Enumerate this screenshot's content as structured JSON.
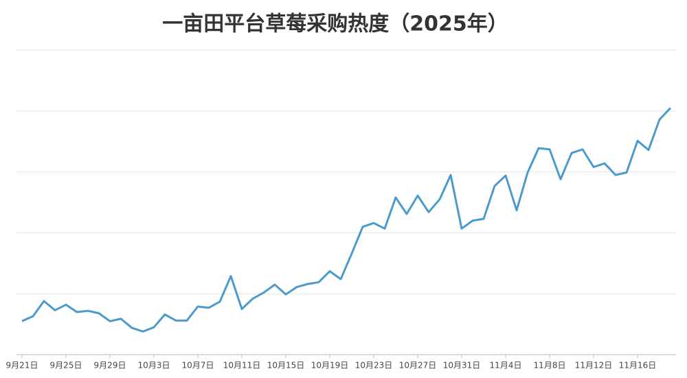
{
  "chart_data": {
    "type": "line",
    "title": "一亩田平台草莓采购热度（2025年）",
    "categories": [
      "9月21日",
      null,
      null,
      null,
      "9月25日",
      null,
      null,
      null,
      "9月29日",
      null,
      null,
      null,
      "10月3日",
      null,
      null,
      null,
      "10月7日",
      null,
      null,
      null,
      "10月11日",
      null,
      null,
      null,
      "10月15日",
      null,
      null,
      null,
      "10月19日",
      null,
      null,
      null,
      "10月23日",
      null,
      null,
      null,
      "10月27日",
      null,
      null,
      null,
      "10月31日",
      null,
      null,
      null,
      "11月4日",
      null,
      null,
      null,
      "11月8日",
      null,
      null,
      null,
      "11月12日",
      null,
      null,
      null,
      "11月16日",
      null,
      null,
      null
    ],
    "values": [
      0.55,
      0.63,
      0.88,
      0.73,
      0.82,
      0.7,
      0.72,
      0.68,
      0.55,
      0.59,
      0.44,
      0.38,
      0.45,
      0.66,
      0.56,
      0.56,
      0.79,
      0.77,
      0.87,
      1.29,
      0.75,
      0.92,
      1.02,
      1.15,
      0.99,
      1.11,
      1.16,
      1.19,
      1.37,
      1.24,
      1.66,
      2.1,
      2.16,
      2.07,
      2.58,
      2.31,
      2.61,
      2.34,
      2.55,
      2.95,
      2.07,
      2.2,
      2.23,
      2.77,
      2.94,
      2.37,
      2.99,
      3.39,
      3.37,
      2.88,
      3.31,
      3.37,
      3.08,
      3.14,
      2.95,
      2.99,
      3.51,
      3.36,
      3.86,
      4.05
    ],
    "color": "#4a9acb",
    "ylim": [
      0,
      5
    ],
    "yticks": [
      1,
      2,
      3,
      4,
      5
    ],
    "grid": true
  }
}
